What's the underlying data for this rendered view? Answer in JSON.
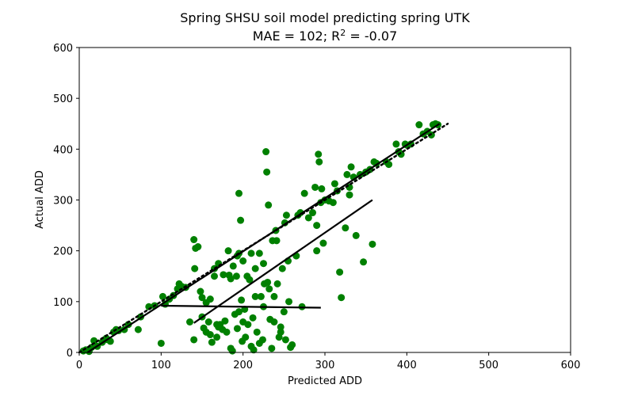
{
  "chart_data": {
    "type": "scatter",
    "title_line1": "Spring SHSU soil model predicting spring UTK",
    "title_line2_prefix": "MAE = 102; R",
    "title_line2_superscript": "2",
    "title_line2_suffix": " = -0.07",
    "xlabel": "Predicted ADD",
    "ylabel": "Actual ADD",
    "xlim": [
      0,
      600
    ],
    "ylim": [
      0,
      600
    ],
    "xticks": [
      0,
      100,
      200,
      300,
      400,
      500,
      600
    ],
    "yticks": [
      0,
      100,
      200,
      300,
      400,
      500,
      600
    ],
    "grid": false,
    "legend": "none",
    "point_color": "#008000",
    "line_color": "#000000",
    "points": [
      [
        5,
        3
      ],
      [
        8,
        5
      ],
      [
        12,
        2
      ],
      [
        15,
        10
      ],
      [
        18,
        23
      ],
      [
        22,
        12
      ],
      [
        28,
        20
      ],
      [
        30,
        24
      ],
      [
        33,
        28
      ],
      [
        35,
        25
      ],
      [
        38,
        22
      ],
      [
        42,
        40
      ],
      [
        45,
        45
      ],
      [
        48,
        43
      ],
      [
        55,
        45
      ],
      [
        60,
        55
      ],
      [
        72,
        45
      ],
      [
        75,
        70
      ],
      [
        85,
        90
      ],
      [
        92,
        92
      ],
      [
        100,
        18
      ],
      [
        102,
        110
      ],
      [
        105,
        95
      ],
      [
        110,
        105
      ],
      [
        115,
        112
      ],
      [
        120,
        125
      ],
      [
        122,
        135
      ],
      [
        125,
        130
      ],
      [
        130,
        128
      ],
      [
        135,
        60
      ],
      [
        140,
        25
      ],
      [
        140,
        222
      ],
      [
        141,
        165
      ],
      [
        142,
        205
      ],
      [
        145,
        208
      ],
      [
        148,
        120
      ],
      [
        150,
        108
      ],
      [
        150,
        70
      ],
      [
        152,
        48
      ],
      [
        155,
        40
      ],
      [
        155,
        98
      ],
      [
        158,
        60
      ],
      [
        160,
        35
      ],
      [
        160,
        105
      ],
      [
        162,
        20
      ],
      [
        165,
        165
      ],
      [
        165,
        150
      ],
      [
        168,
        30
      ],
      [
        168,
        55
      ],
      [
        170,
        50
      ],
      [
        170,
        175
      ],
      [
        172,
        55
      ],
      [
        175,
        45
      ],
      [
        176,
        153
      ],
      [
        178,
        62
      ],
      [
        180,
        40
      ],
      [
        182,
        200
      ],
      [
        183,
        152
      ],
      [
        185,
        145
      ],
      [
        185,
        8
      ],
      [
        187,
        3
      ],
      [
        188,
        170
      ],
      [
        190,
        75
      ],
      [
        192,
        150
      ],
      [
        193,
        47
      ],
      [
        193,
        190
      ],
      [
        195,
        80
      ],
      [
        195,
        195
      ],
      [
        195,
        313
      ],
      [
        197,
        260
      ],
      [
        198,
        103
      ],
      [
        199,
        22
      ],
      [
        200,
        60
      ],
      [
        200,
        180
      ],
      [
        202,
        85
      ],
      [
        203,
        30
      ],
      [
        205,
        150
      ],
      [
        206,
        55
      ],
      [
        208,
        143
      ],
      [
        210,
        12
      ],
      [
        210,
        195
      ],
      [
        212,
        68
      ],
      [
        213,
        5
      ],
      [
        215,
        110
      ],
      [
        215,
        165
      ],
      [
        217,
        40
      ],
      [
        220,
        18
      ],
      [
        220,
        195
      ],
      [
        222,
        110
      ],
      [
        224,
        25
      ],
      [
        225,
        175
      ],
      [
        225,
        90
      ],
      [
        226,
        135
      ],
      [
        228,
        395
      ],
      [
        229,
        355
      ],
      [
        230,
        138
      ],
      [
        231,
        290
      ],
      [
        232,
        125
      ],
      [
        233,
        65
      ],
      [
        235,
        8
      ],
      [
        236,
        220
      ],
      [
        238,
        60
      ],
      [
        238,
        110
      ],
      [
        240,
        240
      ],
      [
        241,
        220
      ],
      [
        242,
        135
      ],
      [
        244,
        30
      ],
      [
        246,
        40
      ],
      [
        246,
        50
      ],
      [
        248,
        165
      ],
      [
        250,
        80
      ],
      [
        251,
        255
      ],
      [
        252,
        25
      ],
      [
        253,
        270
      ],
      [
        255,
        180
      ],
      [
        256,
        100
      ],
      [
        258,
        10
      ],
      [
        260,
        15
      ],
      [
        265,
        190
      ],
      [
        267,
        270
      ],
      [
        270,
        275
      ],
      [
        272,
        90
      ],
      [
        275,
        313
      ],
      [
        280,
        265
      ],
      [
        285,
        275
      ],
      [
        288,
        325
      ],
      [
        290,
        200
      ],
      [
        290,
        250
      ],
      [
        292,
        390
      ],
      [
        293,
        375
      ],
      [
        295,
        295
      ],
      [
        296,
        322
      ],
      [
        298,
        215
      ],
      [
        300,
        300
      ],
      [
        305,
        298
      ],
      [
        310,
        295
      ],
      [
        312,
        332
      ],
      [
        315,
        318
      ],
      [
        318,
        158
      ],
      [
        320,
        108
      ],
      [
        325,
        245
      ],
      [
        327,
        350
      ],
      [
        330,
        310
      ],
      [
        330,
        325
      ],
      [
        332,
        365
      ],
      [
        335,
        345
      ],
      [
        338,
        230
      ],
      [
        343,
        350
      ],
      [
        347,
        178
      ],
      [
        350,
        355
      ],
      [
        355,
        360
      ],
      [
        358,
        213
      ],
      [
        360,
        375
      ],
      [
        363,
        372
      ],
      [
        375,
        375
      ],
      [
        378,
        370
      ],
      [
        387,
        410
      ],
      [
        390,
        395
      ],
      [
        393,
        390
      ],
      [
        398,
        410
      ],
      [
        400,
        408
      ],
      [
        405,
        410
      ],
      [
        415,
        448
      ],
      [
        420,
        430
      ],
      [
        425,
        435
      ],
      [
        430,
        428
      ],
      [
        432,
        448
      ],
      [
        435,
        450
      ],
      [
        438,
        448
      ]
    ],
    "lines": [
      {
        "style": "dotted",
        "points": [
          [
            0,
            0
          ],
          [
            450,
            450
          ]
        ]
      },
      {
        "style": "solid",
        "points": [
          [
            10,
            0
          ],
          [
            440,
            450
          ]
        ]
      },
      {
        "style": "solid",
        "points": [
          [
            140,
            58
          ],
          [
            358,
            300
          ]
        ]
      },
      {
        "style": "solid",
        "points": [
          [
            100,
            92
          ],
          [
            295,
            88
          ]
        ]
      }
    ]
  }
}
